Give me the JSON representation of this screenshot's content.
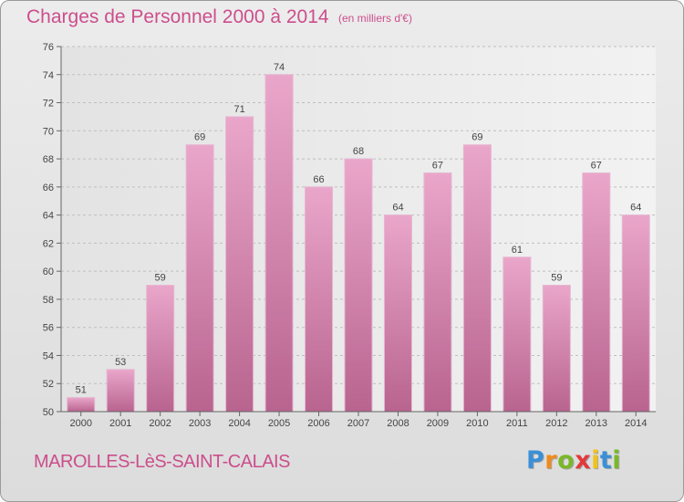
{
  "title": "Charges de Personnel 2000 à 2014",
  "unit_note": "(en milliers d'€)",
  "commune": "MAROLLES-LèS-SAINT-CALAIS",
  "logo": {
    "letters": [
      "P",
      "r",
      "o",
      "x",
      "i",
      "t",
      "i"
    ],
    "colors": [
      "#3a8fd6",
      "#f08a1c",
      "#79b829",
      "#e23a3a",
      "#f2c21b",
      "#3a8fd6",
      "#79b829"
    ]
  },
  "colors": {
    "bar": "#d47fae",
    "bar_light": "#e8a9cb",
    "text_accent": "#cc4e8c",
    "grid": "#bfbfbf"
  },
  "chart_data": {
    "type": "bar",
    "categories": [
      "2000",
      "2001",
      "2002",
      "2003",
      "2004",
      "2005",
      "2006",
      "2007",
      "2008",
      "2009",
      "2010",
      "2011",
      "2012",
      "2013",
      "2014"
    ],
    "values": [
      51,
      53,
      59,
      69,
      71,
      74,
      66,
      68,
      64,
      67,
      69,
      61,
      59,
      67,
      64
    ],
    "title": "Charges de Personnel 2000 à 2014",
    "subtitle": "(en milliers d'€)",
    "xlabel": "",
    "ylabel": "",
    "ylim": [
      50,
      76
    ],
    "yticks": [
      50,
      52,
      54,
      56,
      58,
      60,
      62,
      64,
      66,
      68,
      70,
      72,
      74,
      76
    ],
    "grid": true,
    "data_labels": true
  }
}
